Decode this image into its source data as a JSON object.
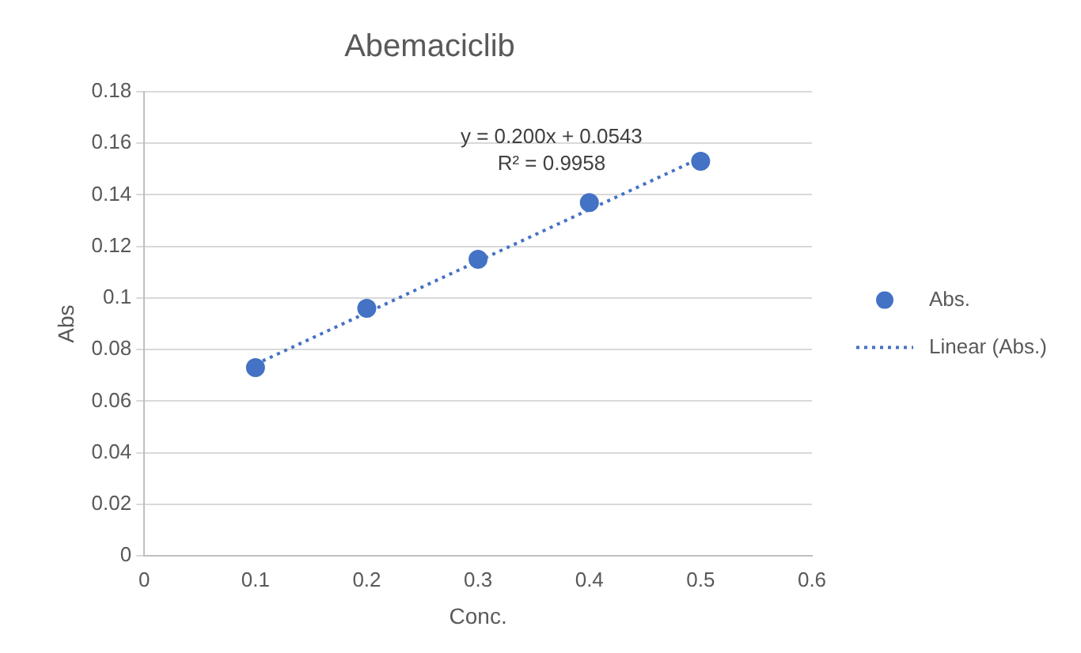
{
  "chart_data": {
    "type": "scatter",
    "title": "Abemaciclib",
    "xlabel": "Conc.",
    "ylabel": "Abs",
    "x": [
      0.1,
      0.2,
      0.3,
      0.4,
      0.5
    ],
    "series": [
      {
        "name": "Abs.",
        "color": "#4472c4",
        "marker": "circle",
        "values": [
          0.073,
          0.096,
          0.115,
          0.137,
          0.153
        ]
      },
      {
        "name": "Linear (Abs.)",
        "type": "line",
        "color": "#4472c4",
        "line_style": "dotted",
        "marker": "none",
        "x": [
          0.1,
          0.5
        ],
        "values": [
          0.0743,
          0.1543
        ]
      }
    ],
    "annotations": [
      "y = 0.200x + 0.0543",
      "R² = 0.9958"
    ],
    "xlim": [
      0,
      0.6
    ],
    "xticks": [
      0,
      0.1,
      0.2,
      0.3,
      0.4,
      0.5,
      0.6
    ],
    "ylim": [
      0,
      0.18
    ],
    "yticks": [
      0,
      0.02,
      0.04,
      0.06,
      0.08,
      0.1,
      0.12,
      0.14,
      0.16,
      0.18
    ],
    "grid": "y",
    "legend": "right"
  }
}
